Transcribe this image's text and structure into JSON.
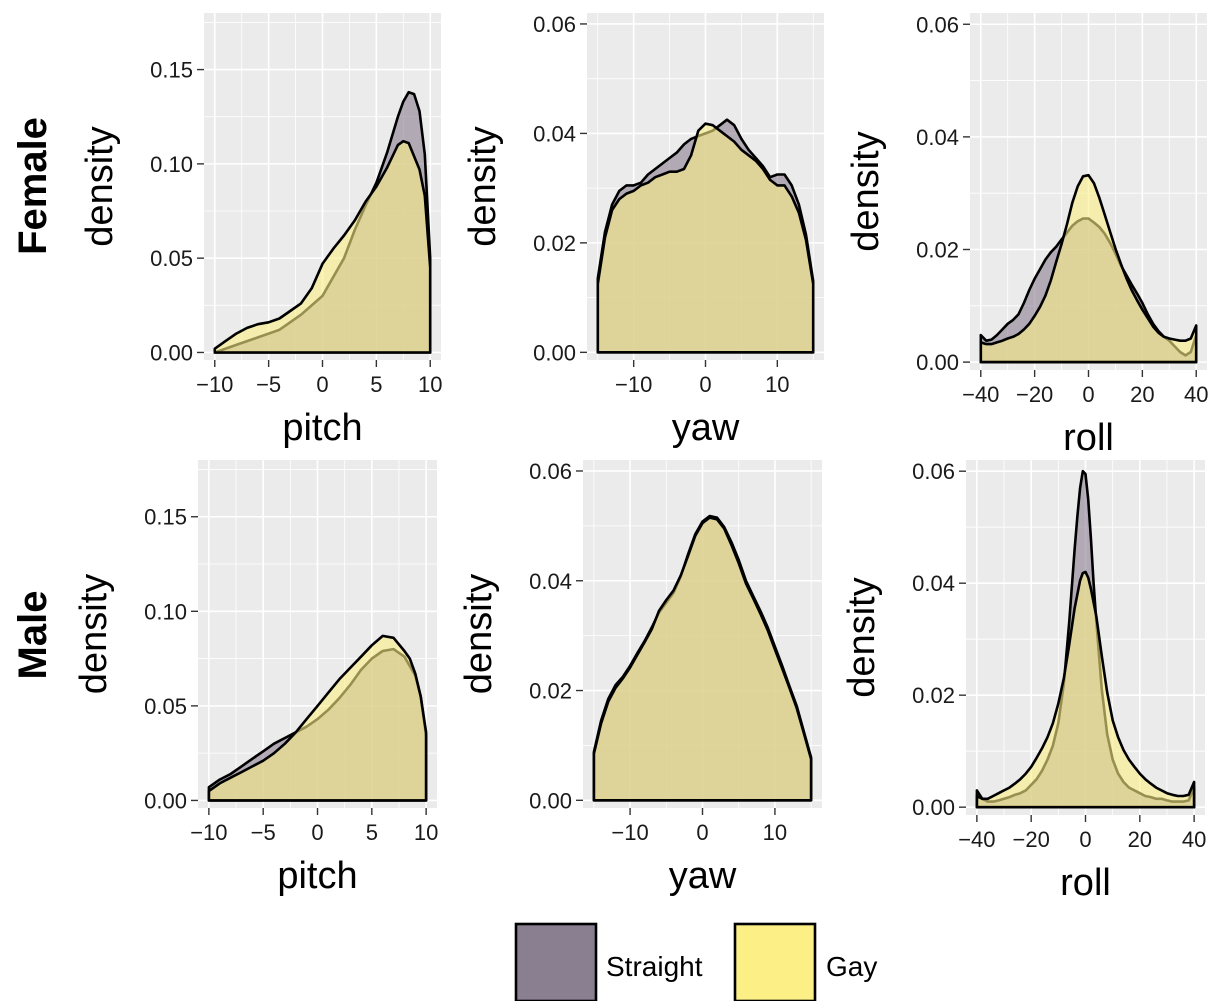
{
  "chart_data": [
    {
      "type": "area",
      "row": "Female",
      "xlabel": "pitch",
      "ylabel": "density",
      "xlim": [
        -11,
        11
      ],
      "ylim": [
        -0.004,
        0.18
      ],
      "xticks": [
        -10,
        -5,
        0,
        5,
        10
      ],
      "xtick_labels": [
        "−10",
        "−5",
        "0",
        "5",
        "10"
      ],
      "yticks": [
        0,
        0.05,
        0.1,
        0.15
      ],
      "ytick_labels": [
        "0.00",
        "0.05",
        "0.10",
        "0.15"
      ],
      "grid": true,
      "series": [
        {
          "name": "Straight",
          "x": [
            -10,
            -8,
            -6,
            -4,
            -2,
            0,
            2,
            3,
            4,
            5,
            6,
            7,
            7.5,
            8,
            8.5,
            9,
            9.5,
            10,
            10
          ],
          "y": [
            0,
            0.004,
            0.008,
            0.012,
            0.02,
            0.03,
            0.05,
            0.065,
            0.078,
            0.09,
            0.106,
            0.125,
            0.133,
            0.138,
            0.137,
            0.128,
            0.105,
            0.05,
            0
          ]
        },
        {
          "name": "Gay",
          "x": [
            -10,
            -9,
            -8,
            -7,
            -6,
            -5,
            -4,
            -3,
            -2,
            -1,
            0,
            1,
            2,
            3,
            4,
            5,
            6,
            7,
            7.5,
            8,
            9,
            9.5,
            10,
            10
          ],
          "y": [
            0.002,
            0.006,
            0.01,
            0.013,
            0.015,
            0.016,
            0.018,
            0.022,
            0.026,
            0.034,
            0.047,
            0.055,
            0.062,
            0.07,
            0.08,
            0.088,
            0.098,
            0.11,
            0.112,
            0.111,
            0.097,
            0.083,
            0.045,
            0
          ]
        }
      ]
    },
    {
      "type": "area",
      "row": "Female",
      "xlabel": "yaw",
      "ylabel": "density",
      "xlim": [
        -16.5,
        16.5
      ],
      "ylim": [
        -0.0014,
        0.062
      ],
      "xticks": [
        -10,
        0,
        10
      ],
      "xtick_labels": [
        "−10",
        "0",
        "10"
      ],
      "yticks": [
        0,
        0.02,
        0.04,
        0.06
      ],
      "ytick_labels": [
        "0.00",
        "0.02",
        "0.04",
        "0.06"
      ],
      "grid": true,
      "series": [
        {
          "name": "Straight",
          "x": [
            -15,
            -15,
            -14,
            -13,
            -12,
            -11,
            -10,
            -9,
            -8,
            -7,
            -6,
            -5,
            -4,
            -3,
            -2,
            -1,
            0,
            1,
            2,
            3,
            4,
            5,
            6,
            7,
            8,
            9,
            10,
            11,
            12,
            13,
            14,
            15,
            15
          ],
          "y": [
            0,
            0.0135,
            0.022,
            0.027,
            0.0295,
            0.0305,
            0.0305,
            0.031,
            0.0325,
            0.0335,
            0.0345,
            0.0355,
            0.0365,
            0.038,
            0.039,
            0.0395,
            0.04,
            0.0405,
            0.0415,
            0.0425,
            0.0415,
            0.039,
            0.037,
            0.0355,
            0.034,
            0.032,
            0.0325,
            0.0325,
            0.0305,
            0.027,
            0.0215,
            0.013,
            0
          ]
        },
        {
          "name": "Gay",
          "x": [
            -15,
            -15,
            -14,
            -13,
            -12,
            -11,
            -10,
            -9,
            -8,
            -7,
            -6,
            -5,
            -4,
            -3,
            -2,
            -1,
            0,
            1,
            2,
            3,
            4,
            5,
            6,
            7,
            8,
            9,
            10,
            11,
            12,
            13,
            14,
            15,
            15
          ],
          "y": [
            0,
            0.0125,
            0.021,
            0.026,
            0.028,
            0.029,
            0.0295,
            0.0305,
            0.031,
            0.032,
            0.0325,
            0.033,
            0.033,
            0.0335,
            0.036,
            0.0405,
            0.0418,
            0.0415,
            0.0405,
            0.0395,
            0.0385,
            0.037,
            0.036,
            0.035,
            0.0335,
            0.0315,
            0.0305,
            0.0305,
            0.0285,
            0.0255,
            0.0205,
            0.0125,
            0
          ]
        }
      ]
    },
    {
      "type": "area",
      "row": "Female",
      "xlabel": "roll",
      "ylabel": "density",
      "xlim": [
        -44,
        44
      ],
      "ylim": [
        -0.0014,
        0.062
      ],
      "xticks": [
        -40,
        -20,
        0,
        20,
        40
      ],
      "xtick_labels": [
        "−40",
        "−20",
        "0",
        "20",
        "40"
      ],
      "yticks": [
        0,
        0.02,
        0.04,
        0.06
      ],
      "ytick_labels": [
        "0.00",
        "0.02",
        "0.04",
        "0.06"
      ],
      "grid": true,
      "series": [
        {
          "name": "Straight",
          "x": [
            -40,
            -40,
            -38,
            -36,
            -34,
            -32,
            -30,
            -28,
            -26,
            -24,
            -22,
            -20,
            -18,
            -16,
            -14,
            -12,
            -10,
            -8,
            -6,
            -4,
            -2,
            0,
            2,
            4,
            6,
            8,
            10,
            12,
            14,
            16,
            18,
            20,
            22,
            24,
            26,
            28,
            30,
            32,
            34,
            36,
            38,
            40,
            40
          ],
          "y": [
            0,
            0.0048,
            0.0038,
            0.004,
            0.0048,
            0.0058,
            0.0068,
            0.0075,
            0.0085,
            0.0105,
            0.0128,
            0.0148,
            0.0165,
            0.0182,
            0.0195,
            0.0205,
            0.0218,
            0.023,
            0.0242,
            0.025,
            0.0255,
            0.0255,
            0.0248,
            0.024,
            0.0228,
            0.0212,
            0.0193,
            0.0172,
            0.0155,
            0.0138,
            0.0122,
            0.0105,
            0.0085,
            0.0068,
            0.0055,
            0.0045,
            0.0038,
            0.0028,
            0.0018,
            0.0012,
            0.0018,
            0.0048,
            0
          ]
        },
        {
          "name": "Gay",
          "x": [
            -40,
            -40,
            -38,
            -36,
            -34,
            -32,
            -30,
            -28,
            -26,
            -24,
            -22,
            -20,
            -18,
            -16,
            -14,
            -12,
            -10,
            -8,
            -6,
            -4,
            -2,
            0,
            2,
            4,
            6,
            8,
            10,
            12,
            14,
            16,
            18,
            20,
            22,
            24,
            26,
            28,
            30,
            32,
            34,
            36,
            38,
            40,
            40
          ],
          "y": [
            0,
            0.0035,
            0.0032,
            0.0032,
            0.0035,
            0.0038,
            0.0042,
            0.0045,
            0.005,
            0.0058,
            0.0068,
            0.0082,
            0.0098,
            0.0118,
            0.0145,
            0.0178,
            0.021,
            0.0245,
            0.0283,
            0.0312,
            0.033,
            0.0332,
            0.0318,
            0.0292,
            0.0262,
            0.0232,
            0.0202,
            0.0175,
            0.015,
            0.0128,
            0.011,
            0.0093,
            0.0078,
            0.0063,
            0.0052,
            0.0045,
            0.0042,
            0.004,
            0.0038,
            0.0038,
            0.0042,
            0.0065,
            0
          ]
        }
      ]
    },
    {
      "type": "area",
      "row": "Male",
      "xlabel": "pitch",
      "ylabel": "density",
      "xlim": [
        -11,
        11
      ],
      "ylim": [
        -0.004,
        0.18
      ],
      "xticks": [
        -10,
        -5,
        0,
        5,
        10
      ],
      "xtick_labels": [
        "−10",
        "−5",
        "0",
        "5",
        "10"
      ],
      "yticks": [
        0,
        0.05,
        0.1,
        0.15
      ],
      "ytick_labels": [
        "0.00",
        "0.05",
        "0.10",
        "0.15"
      ],
      "grid": true,
      "series": [
        {
          "name": "Straight",
          "x": [
            -10,
            -10,
            -9,
            -8,
            -7,
            -6,
            -5,
            -4,
            -3,
            -2,
            -1,
            0,
            1,
            2,
            3,
            4,
            5,
            6,
            7,
            8,
            9,
            9.5,
            10,
            10
          ],
          "y": [
            0,
            0.007,
            0.011,
            0.014,
            0.018,
            0.022,
            0.026,
            0.03,
            0.033,
            0.036,
            0.039,
            0.043,
            0.048,
            0.054,
            0.061,
            0.069,
            0.075,
            0.079,
            0.08,
            0.076,
            0.066,
            0.055,
            0.034,
            0
          ]
        },
        {
          "name": "Gay",
          "x": [
            -10,
            -10,
            -9,
            -8,
            -7,
            -6,
            -5,
            -4,
            -3,
            -2,
            -1,
            0,
            1,
            2,
            3,
            4,
            5,
            6,
            7,
            8,
            8.5,
            9,
            9.5,
            10,
            10
          ],
          "y": [
            0,
            0.005,
            0.009,
            0.012,
            0.015,
            0.018,
            0.021,
            0.025,
            0.03,
            0.036,
            0.043,
            0.05,
            0.057,
            0.064,
            0.07,
            0.076,
            0.082,
            0.087,
            0.086,
            0.079,
            0.075,
            0.067,
            0.055,
            0.036,
            0
          ]
        }
      ]
    },
    {
      "type": "area",
      "row": "Male",
      "xlabel": "yaw",
      "ylabel": "density",
      "xlim": [
        -16.5,
        16.5
      ],
      "ylim": [
        -0.0014,
        0.062
      ],
      "xticks": [
        -10,
        0,
        10
      ],
      "xtick_labels": [
        "−10",
        "0",
        "10"
      ],
      "yticks": [
        0,
        0.02,
        0.04,
        0.06
      ],
      "ytick_labels": [
        "0.00",
        "0.02",
        "0.04",
        "0.06"
      ],
      "grid": true,
      "series": [
        {
          "name": "Straight",
          "x": [
            -15,
            -15,
            -14,
            -13,
            -12,
            -11,
            -10,
            -9,
            -8,
            -7,
            -6,
            -5,
            -4,
            -3,
            -2,
            -1,
            0,
            1,
            2,
            3,
            4,
            5,
            6,
            7,
            8,
            9,
            10,
            11,
            12,
            13,
            14,
            15,
            15
          ],
          "y": [
            0,
            0.0088,
            0.0145,
            0.0185,
            0.021,
            0.0225,
            0.0245,
            0.0268,
            0.029,
            0.0315,
            0.0342,
            0.036,
            0.0378,
            0.0408,
            0.0448,
            0.0485,
            0.0508,
            0.0518,
            0.0515,
            0.0498,
            0.047,
            0.0438,
            0.04,
            0.0372,
            0.0345,
            0.0315,
            0.028,
            0.0245,
            0.0208,
            0.0172,
            0.0125,
            0.0078,
            0
          ]
        },
        {
          "name": "Gay",
          "x": [
            -15,
            -15,
            -14,
            -13,
            -12,
            -11,
            -10,
            -9,
            -8,
            -7,
            -6,
            -5,
            -4,
            -3,
            -2,
            -1,
            0,
            1,
            2,
            3,
            4,
            5,
            6,
            7,
            8,
            9,
            10,
            11,
            12,
            13,
            14,
            15,
            15
          ],
          "y": [
            0,
            0.0085,
            0.014,
            0.018,
            0.0205,
            0.0222,
            0.0242,
            0.0265,
            0.0288,
            0.0312,
            0.0345,
            0.0365,
            0.0382,
            0.041,
            0.0445,
            0.0482,
            0.0505,
            0.0515,
            0.0512,
            0.0495,
            0.0465,
            0.0432,
            0.0395,
            0.0368,
            0.034,
            0.031,
            0.0275,
            0.024,
            0.0205,
            0.0168,
            0.0122,
            0.0075,
            0
          ]
        }
      ]
    },
    {
      "type": "area",
      "row": "Male",
      "xlabel": "roll",
      "ylabel": "density",
      "xlim": [
        -44,
        44
      ],
      "ylim": [
        -0.0014,
        0.062
      ],
      "xticks": [
        -40,
        -20,
        0,
        20,
        40
      ],
      "xtick_labels": [
        "−40",
        "−20",
        "0",
        "20",
        "40"
      ],
      "yticks": [
        0,
        0.02,
        0.04,
        0.06
      ],
      "ytick_labels": [
        "0.00",
        "0.02",
        "0.04",
        "0.06"
      ],
      "grid": true,
      "series": [
        {
          "name": "Straight",
          "x": [
            -40,
            -40,
            -38,
            -36,
            -34,
            -32,
            -30,
            -28,
            -26,
            -24,
            -22,
            -20,
            -18,
            -16,
            -14,
            -12,
            -10,
            -8,
            -6,
            -4,
            -3,
            -2,
            -1,
            0,
            1,
            2,
            3,
            4,
            6,
            8,
            10,
            12,
            14,
            16,
            18,
            20,
            22,
            24,
            26,
            28,
            30,
            32,
            34,
            36,
            38,
            40,
            40
          ],
          "y": [
            0,
            0.003,
            0.0015,
            0.001,
            0.001,
            0.0012,
            0.0015,
            0.0018,
            0.0022,
            0.0025,
            0.003,
            0.004,
            0.005,
            0.0065,
            0.0085,
            0.011,
            0.015,
            0.022,
            0.033,
            0.046,
            0.052,
            0.057,
            0.06,
            0.0595,
            0.055,
            0.048,
            0.04,
            0.033,
            0.021,
            0.013,
            0.0085,
            0.006,
            0.0045,
            0.0035,
            0.003,
            0.0025,
            0.002,
            0.0018,
            0.0015,
            0.0015,
            0.0012,
            0.001,
            0.001,
            0.001,
            0.0012,
            0.0035,
            0
          ]
        },
        {
          "name": "Gay",
          "x": [
            -40,
            -40,
            -38,
            -36,
            -34,
            -32,
            -30,
            -28,
            -26,
            -24,
            -22,
            -20,
            -18,
            -16,
            -14,
            -12,
            -10,
            -8,
            -6,
            -4,
            -2,
            -1,
            0,
            1,
            2,
            4,
            6,
            8,
            10,
            12,
            14,
            16,
            18,
            20,
            22,
            24,
            26,
            28,
            30,
            32,
            34,
            36,
            38,
            40,
            40
          ],
          "y": [
            0,
            0.002,
            0.0015,
            0.0015,
            0.002,
            0.0025,
            0.003,
            0.0035,
            0.0042,
            0.005,
            0.006,
            0.0072,
            0.0088,
            0.0105,
            0.0125,
            0.015,
            0.0185,
            0.023,
            0.029,
            0.0355,
            0.0405,
            0.0418,
            0.042,
            0.041,
            0.039,
            0.034,
            0.027,
            0.0205,
            0.0155,
            0.0125,
            0.0102,
            0.0085,
            0.0072,
            0.006,
            0.005,
            0.0042,
            0.0035,
            0.003,
            0.0025,
            0.0022,
            0.002,
            0.002,
            0.0022,
            0.0045,
            0
          ]
        }
      ]
    }
  ],
  "row_labels": [
    "Female",
    "Male"
  ],
  "legend": {
    "position": "bottom",
    "items": [
      {
        "label": "Straight",
        "fill": "#8a7f91"
      },
      {
        "label": "Gay",
        "fill": "#fcef86"
      }
    ]
  },
  "colors": {
    "Straight": "#8a7f91",
    "Gay": "#fcef86",
    "overlap": "#c3b35a",
    "panel_background": "#ebebeb",
    "grid": "#ffffff"
  }
}
